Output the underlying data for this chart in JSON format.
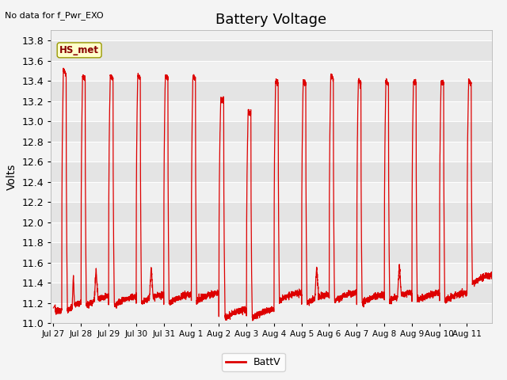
{
  "title": "Battery Voltage",
  "ylabel": "Volts",
  "annotation": "No data for f_Pwr_EXO",
  "legend_label": "BattV",
  "line_color": "#dd0000",
  "ylim": [
    11.0,
    13.9
  ],
  "yticks": [
    11.0,
    11.2,
    11.4,
    11.6,
    11.8,
    12.0,
    12.2,
    12.4,
    12.6,
    12.8,
    13.0,
    13.2,
    13.4,
    13.6,
    13.8
  ],
  "xtick_labels": [
    "Jul 27",
    "Jul 28",
    "Jul 29",
    "Jul 30",
    "Jul 31",
    "Aug 1",
    "Aug 2",
    "Aug 3",
    "Aug 4",
    "Aug 5",
    "Aug 6",
    "Aug 7",
    "Aug 8",
    "Aug 9",
    "Aug 10",
    "Aug 11"
  ],
  "box_label": "HS_met",
  "box_facecolor": "#ffffcc",
  "box_edgecolor": "#999900",
  "title_fontsize": 13,
  "axis_fontsize": 10,
  "tick_fontsize": 9,
  "bg_light": "#f0f0f0",
  "bg_dark": "#e4e4e4",
  "fig_bg": "#f4f4f4"
}
